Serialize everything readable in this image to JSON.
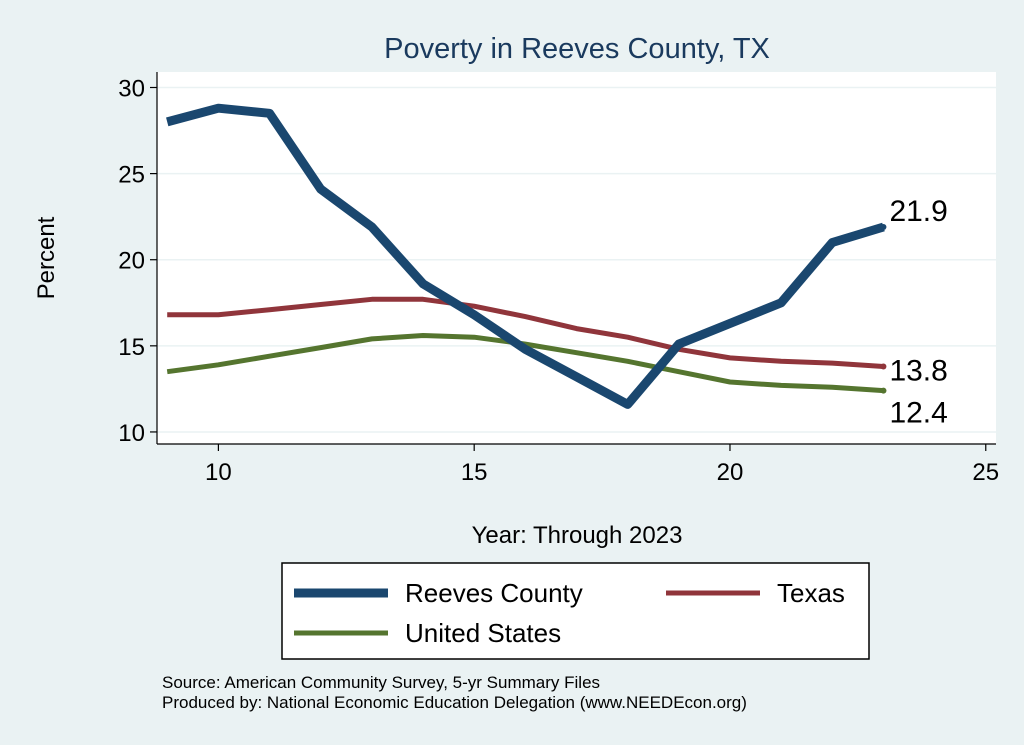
{
  "chart_data": {
    "type": "line",
    "title": "Poverty in Reeves County, TX",
    "xlabel": "Year: Through 2023",
    "ylabel": "Percent",
    "xlim": [
      8.8,
      25.2
    ],
    "ylim": [
      9.3,
      30.9
    ],
    "xticks": [
      10,
      15,
      20,
      25
    ],
    "yticks": [
      10,
      15,
      20,
      25,
      30
    ],
    "grid": true,
    "legend_position": "bottom",
    "x": [
      9,
      10,
      11,
      12,
      13,
      14,
      15,
      16,
      17,
      18,
      19,
      20,
      21,
      22,
      23
    ],
    "series": [
      {
        "name": "Reeves County",
        "color": "#1a476f",
        "values": [
          28.0,
          28.8,
          28.5,
          24.1,
          21.9,
          18.6,
          16.8,
          14.8,
          13.2,
          11.6,
          15.1,
          16.3,
          17.5,
          21.0,
          21.9
        ],
        "end_label": "21.9"
      },
      {
        "name": "Texas",
        "color": "#90353b",
        "values": [
          16.8,
          16.8,
          17.1,
          17.4,
          17.7,
          17.7,
          17.3,
          16.7,
          16.0,
          15.5,
          14.8,
          14.3,
          14.1,
          14.0,
          13.8
        ],
        "end_label": "13.8"
      },
      {
        "name": "United States",
        "color": "#55752f",
        "values": [
          13.5,
          13.9,
          14.4,
          14.9,
          15.4,
          15.6,
          15.5,
          15.1,
          14.6,
          14.1,
          13.5,
          12.9,
          12.7,
          12.6,
          12.4
        ],
        "end_label": "12.4"
      }
    ],
    "notes": [
      "Source: American Community Survey, 5-yr Summary Files",
      "Produced by: National Economic Education Delegation (www.NEEDEcon.org)"
    ]
  }
}
